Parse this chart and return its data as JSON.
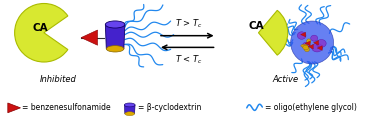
{
  "background_color": "#ffffff",
  "ca_color": "#d8e830",
  "ca_outline": "#aabb00",
  "ca_text": "CA",
  "ca_text_color": "#000000",
  "inhibitor_color": "#cc1111",
  "inhibitor_dark": "#880000",
  "cd_body_color": "#4422cc",
  "cd_top_color": "#6644ee",
  "cd_inside_color": "#ddaa00",
  "oeg_color": "#2288ee",
  "ball_color": "#3355ee",
  "ball_alpha": 0.75,
  "arrow_color": "#111111",
  "label_inhibited": "Inhibited",
  "label_active": "Active",
  "legend_text1": "= benzenesulfonamide",
  "legend_text2": "= β-cyclodextrin",
  "legend_text3": "= oligo(ethylene glycol)",
  "fig_width": 3.78,
  "fig_height": 1.25,
  "dpi": 100
}
